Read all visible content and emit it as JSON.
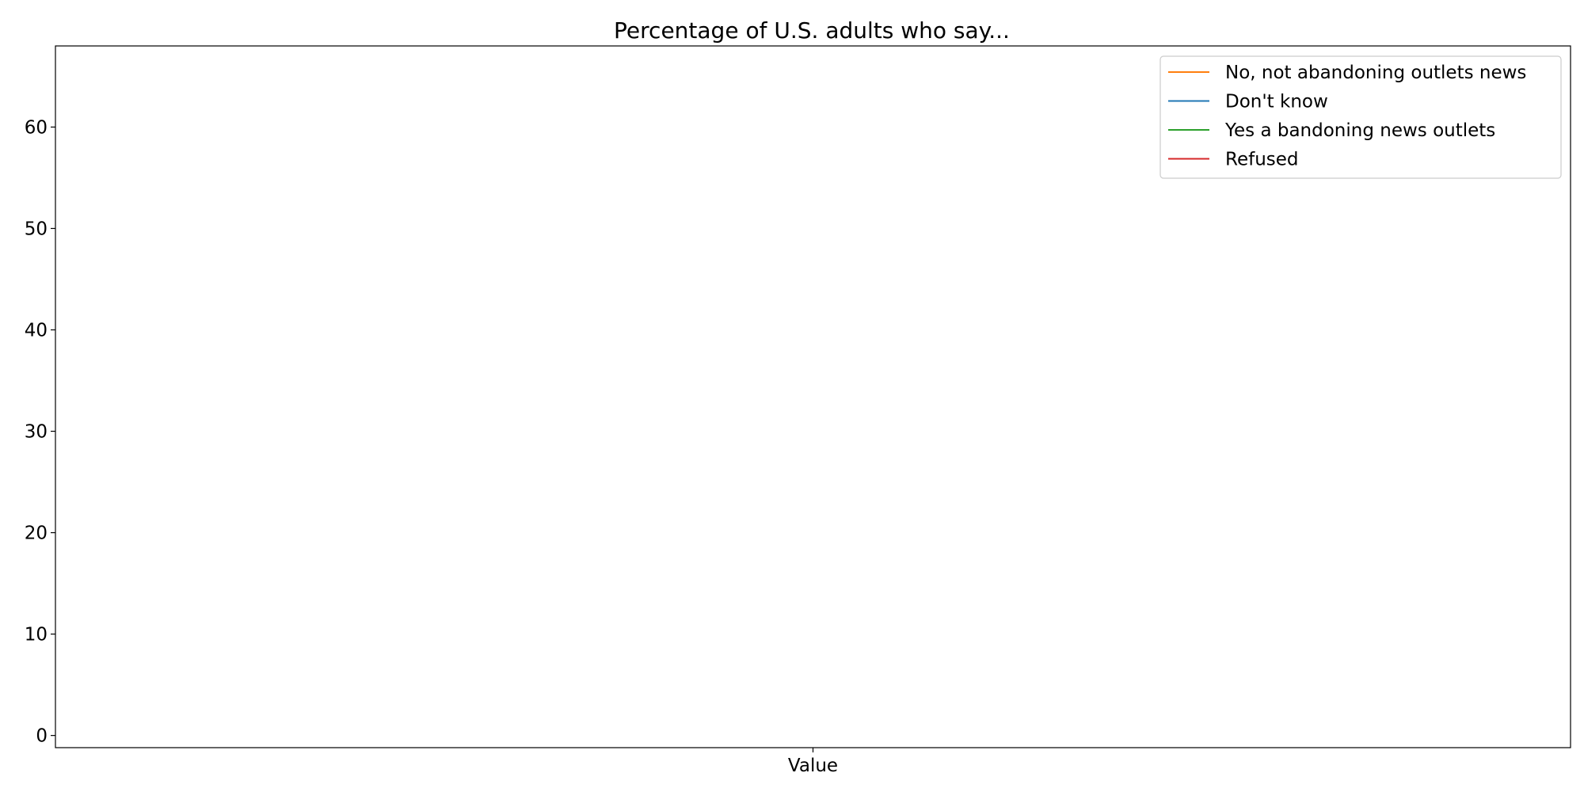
{
  "chart_data": {
    "type": "line",
    "title": "Percentage of U.S. adults who say...",
    "xlabel": "",
    "ylabel": "",
    "categories": [
      "Value"
    ],
    "yticks": [
      0,
      10,
      20,
      30,
      40,
      50,
      60
    ],
    "ylim": [
      -1.2,
      68
    ],
    "grid": false,
    "legend_position": "top-right",
    "series": [
      {
        "name": "No, not abandoning outlets news",
        "color": "#ff7f0e",
        "values": [
          null
        ]
      },
      {
        "name": "Don't know",
        "color": "#1f77b4",
        "values": [
          null
        ]
      },
      {
        "name": "Yes a bandoning news outlets",
        "color": "#2ca02c",
        "values": [
          null
        ]
      },
      {
        "name": "Refused",
        "color": "#d62728",
        "values": [
          null
        ]
      }
    ]
  }
}
